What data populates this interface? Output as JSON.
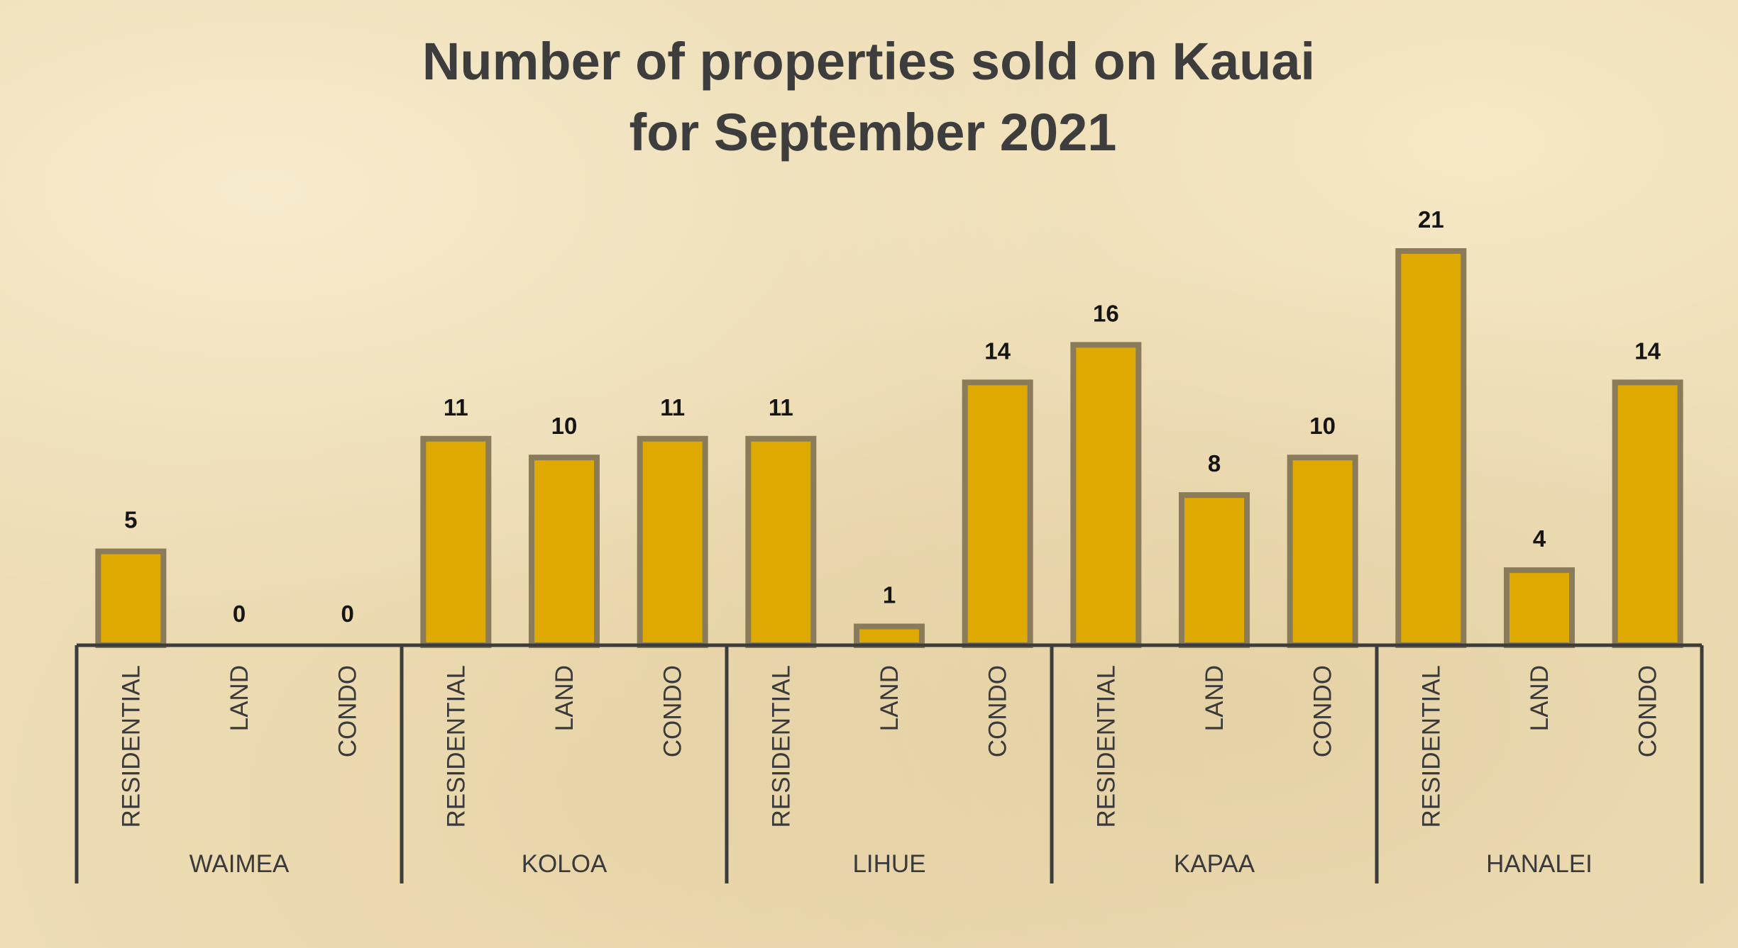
{
  "chart_data": {
    "type": "bar",
    "title_lines": [
      "Number of properties sold on Kauai",
      "for September 2021"
    ],
    "groups": [
      {
        "name": "WAIMEA",
        "categories": [
          "RESIDENTIAL",
          "LAND",
          "CONDO"
        ],
        "values": [
          5,
          0,
          0
        ]
      },
      {
        "name": "KOLOA",
        "categories": [
          "RESIDENTIAL",
          "LAND",
          "CONDO"
        ],
        "values": [
          11,
          10,
          11
        ]
      },
      {
        "name": "LIHUE",
        "categories": [
          "RESIDENTIAL",
          "LAND",
          "CONDO"
        ],
        "values": [
          11,
          1,
          14
        ]
      },
      {
        "name": "KAPAA",
        "categories": [
          "RESIDENTIAL",
          "LAND",
          "CONDO"
        ],
        "values": [
          16,
          8,
          10
        ]
      },
      {
        "name": "HANALEI",
        "categories": [
          "RESIDENTIAL",
          "LAND",
          "CONDO"
        ],
        "values": [
          21,
          4,
          14
        ]
      }
    ],
    "ylim": [
      0,
      21
    ],
    "data_labels": true,
    "grid": false,
    "legend": "none",
    "colors": {
      "bar_fill": "#dea900",
      "bar_edge": "#8a7c5a",
      "axis": "#3c3c3c",
      "background": "#eddcb4"
    }
  }
}
